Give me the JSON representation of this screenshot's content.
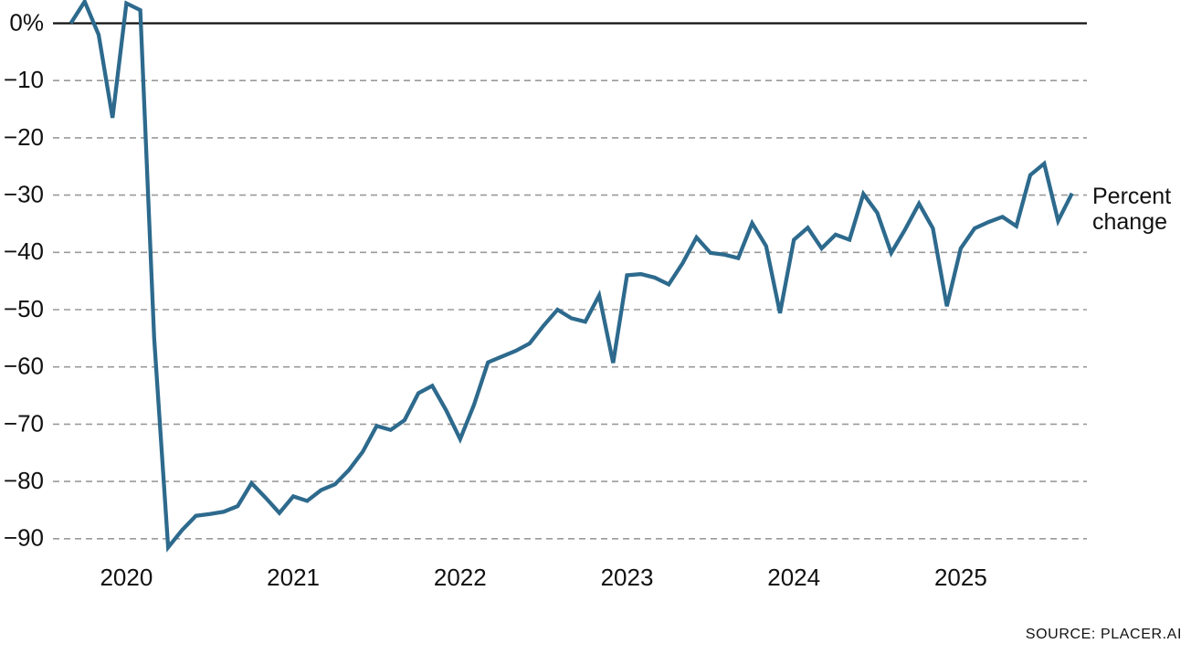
{
  "chart_data": {
    "type": "line",
    "title": "",
    "unit": "percent",
    "months": [
      "2019-09",
      "2019-10",
      "2019-11",
      "2019-12",
      "2020-01",
      "2020-02",
      "2020-03",
      "2020-04",
      "2020-05",
      "2020-06",
      "2020-07",
      "2020-08",
      "2020-09",
      "2020-10",
      "2020-11",
      "2020-12",
      "2021-01",
      "2021-02",
      "2021-03",
      "2021-04",
      "2021-05",
      "2021-06",
      "2021-07",
      "2021-08",
      "2021-09",
      "2021-10",
      "2021-11",
      "2021-12",
      "2022-01",
      "2022-02",
      "2022-03",
      "2022-04",
      "2022-05",
      "2022-06",
      "2022-07",
      "2022-08",
      "2022-09",
      "2022-10",
      "2022-11",
      "2022-12",
      "2023-01",
      "2023-02",
      "2023-03",
      "2023-04",
      "2023-05",
      "2023-06",
      "2023-07",
      "2023-08",
      "2023-09",
      "2023-10",
      "2023-11",
      "2023-12",
      "2024-01",
      "2024-02",
      "2024-03",
      "2024-04",
      "2024-05",
      "2024-06",
      "2024-07",
      "2024-08",
      "2024-09",
      "2024-10",
      "2024-11",
      "2024-12",
      "2025-01",
      "2025-02",
      "2025-03",
      "2025-04",
      "2025-05",
      "2025-06",
      "2025-07",
      "2025-08",
      "2025-09"
    ],
    "values": [
      0,
      3.8,
      -2.0,
      -16.5,
      3.5,
      2.3,
      -55.0,
      -91.5,
      -88.5,
      -86.0,
      -85.7,
      -85.3,
      -84.3,
      -80.3,
      -82.8,
      -85.5,
      -82.6,
      -83.4,
      -81.5,
      -80.5,
      -78.0,
      -74.8,
      -70.3,
      -71.0,
      -69.3,
      -64.6,
      -63.3,
      -67.6,
      -72.6,
      -66.6,
      -59.2,
      -58.2,
      -57.2,
      -55.9,
      -52.8,
      -50.0,
      -51.5,
      -52.1,
      -47.5,
      -59.3,
      -44.0,
      -43.8,
      -44.4,
      -45.6,
      -41.9,
      -37.4,
      -40.1,
      -40.4,
      -41.0,
      -34.9,
      -38.9,
      -50.6,
      -37.8,
      -35.7,
      -39.3,
      -36.9,
      -37.8,
      -29.8,
      -33.1,
      -40.1,
      -36.0,
      -31.5,
      -35.8,
      -49.4,
      -39.3,
      -35.8,
      -34.7,
      -33.8,
      -35.4,
      -26.5,
      -24.5,
      -34.5,
      -29.7
    ],
    "ylim": [
      -95,
      5
    ],
    "y_tick_values": [
      0,
      -10,
      -20,
      -30,
      -40,
      -50,
      -60,
      -70,
      -80,
      -90
    ],
    "y_tick_labels": [
      "0%",
      "−10",
      "−20",
      "−30",
      "−40",
      "−50",
      "−60",
      "−70",
      "−80",
      "−90"
    ],
    "x_tick_years": [
      "2020",
      "2021",
      "2022",
      "2023",
      "2024",
      "2025"
    ],
    "grid": "dashed horizontal",
    "legend_position": "line-end right",
    "line_color": "#2d6a8d",
    "grid_color": "#9a9a9a",
    "zero_line_color": "#111111",
    "line_label": {
      "line1": "Percent",
      "line2": "change"
    },
    "source_label": "SOURCE: PLACER.AI"
  }
}
